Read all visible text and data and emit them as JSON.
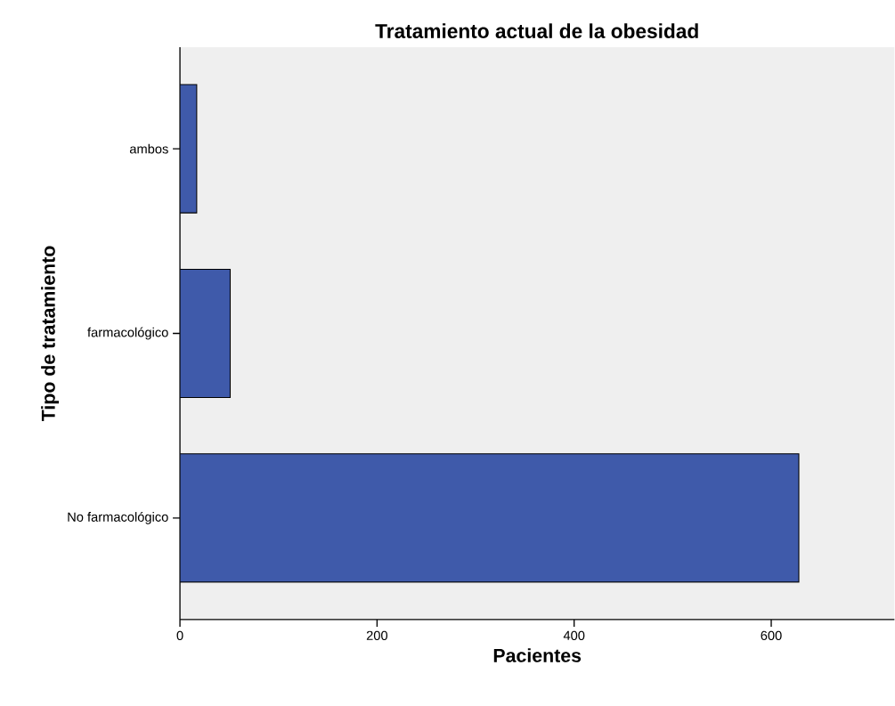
{
  "chart_data": {
    "type": "bar",
    "orientation": "horizontal",
    "title": "Tratamiento actual de la obesidad",
    "xlabel": "Pacientes",
    "ylabel": "Tipo de tratamiento",
    "categories": [
      "ambos",
      "farmacológico",
      "No farmacológico"
    ],
    "values": [
      17,
      51,
      628
    ],
    "color": "#3f5aaa",
    "xlim": [
      0,
      725
    ],
    "xticks": [
      0,
      200,
      400,
      600
    ]
  }
}
